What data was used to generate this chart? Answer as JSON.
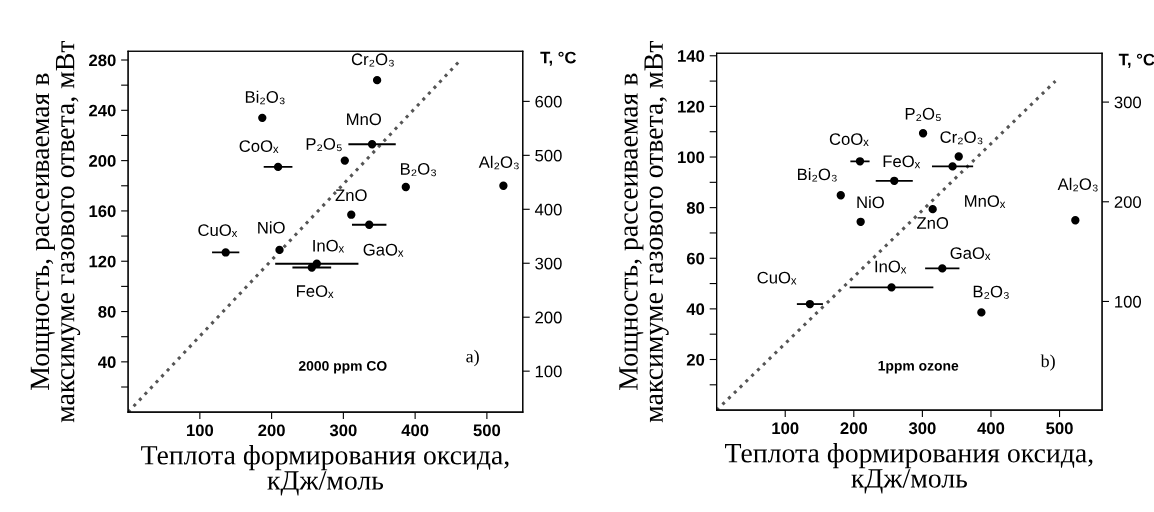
{
  "chart_data": [
    {
      "type": "scatter",
      "xlabel": "Теплота формирования оксида,\nкДж/моль",
      "ylabel": "Мощность, рассеиваемая в\nмаксимуме газового ответа, мВт",
      "y2label": "T, °C",
      "xlim": [
        0,
        550
      ],
      "xticks": [
        100,
        200,
        300,
        400,
        500
      ],
      "ylim": [
        0,
        287
      ],
      "yticks": [
        {
          "value": 20,
          "label": null
        },
        40,
        {
          "value": 60,
          "label": null
        },
        80,
        {
          "value": 100,
          "label": null
        },
        120,
        {
          "value": 140,
          "label": null
        },
        160,
        {
          "value": 180,
          "label": null
        },
        200,
        {
          "value": 220,
          "label": null
        },
        240,
        {
          "value": 260,
          "label": null
        },
        280
      ],
      "y2lim": [
        24,
        693
      ],
      "y2ticks": [
        100,
        200,
        300,
        400,
        500,
        600
      ],
      "series": [
        {
          "color": "#000000",
          "marker": "circle",
          "x": [
            347,
            187,
            209,
            302,
            340,
            311,
            336,
            387,
            523,
            136,
            211,
            263,
            256
          ],
          "values": [
            264,
            234,
            195,
            200,
            213,
            157,
            149,
            179,
            180,
            127,
            129,
            118,
            115
          ],
          "xerrors": [
            null,
            null,
            20,
            null,
            33,
            null,
            24,
            null,
            null,
            19,
            null,
            58,
            27
          ]
        },
        {
          "type": "line",
          "color": "#555555",
          "line_style": "dotted",
          "marker": "none",
          "x": [
            0,
            460
          ],
          "values": [
            0,
            278
          ]
        }
      ],
      "annotations": [
        {
          "text": "Cr₂O₃",
          "x": 347,
          "y": 264
        },
        {
          "text": "Bi₂O₃",
          "x": 187,
          "y": 234
        },
        {
          "text": "CoOₓ",
          "x": 209,
          "y": 195
        },
        {
          "text": "P₂O₅",
          "x": 302,
          "y": 200
        },
        {
          "text": "MnO",
          "x": 340,
          "y": 213
        },
        {
          "text": "ZnO",
          "x": 311,
          "y": 157
        },
        {
          "text": "GaOₓ",
          "x": 336,
          "y": 149
        },
        {
          "text": "B₂O₃",
          "x": 387,
          "y": 179
        },
        {
          "text": "Al₂O₃",
          "x": 523,
          "y": 180
        },
        {
          "text": "CuOₓ",
          "x": 136,
          "y": 127
        },
        {
          "text": "NiO",
          "x": 211,
          "y": 129
        },
        {
          "text": "InOₓ",
          "x": 263,
          "y": 118
        },
        {
          "text": "FeOₓ",
          "x": 256,
          "y": 115
        },
        "2000 ppm CO",
        "a)"
      ]
    },
    {
      "type": "scatter",
      "xlabel": "Теплота формирования оксида,\nкДж/моль",
      "ylabel": "Мощность, рассеиваемая в\nмаксимуме газового ответа, мВт",
      "y2label": "T, °C",
      "xlim": [
        0,
        562
      ],
      "xticks": [
        100,
        200,
        300,
        400,
        500
      ],
      "ylim": [
        0,
        141
      ],
      "yticks": [
        {
          "value": 10,
          "label": null
        },
        20,
        {
          "value": 30,
          "label": null
        },
        40,
        {
          "value": 50,
          "label": null
        },
        60,
        {
          "value": 70,
          "label": null
        },
        80,
        {
          "value": 90,
          "label": null
        },
        100,
        {
          "value": 110,
          "label": null
        },
        120,
        {
          "value": 130,
          "label": null
        },
        140
      ],
      "y2lim": [
        -9,
        349
      ],
      "y2ticks": [
        100,
        200,
        300
      ],
      "series": [
        {
          "color": "#000000",
          "marker": "circle",
          "x": [
            301,
            209,
            259,
            181,
            210,
            315,
            353,
            344,
            523,
            329,
            386,
            136,
            255
          ],
          "values": [
            109.4,
            98.3,
            90.6,
            84.9,
            74.4,
            79.4,
            100.2,
            96.3,
            75,
            56,
            38.6,
            41.9,
            48.5
          ],
          "xerrors": [
            null,
            14,
            27,
            null,
            null,
            null,
            null,
            30,
            null,
            25,
            null,
            19,
            61
          ]
        },
        {
          "type": "line",
          "color": "#555555",
          "line_style": "dotted",
          "marker": "none",
          "x": [
            0,
            494
          ],
          "values": [
            0,
            130
          ]
        }
      ],
      "annotations": [
        {
          "text": "P₂O₅",
          "x": 301,
          "y": 109.4
        },
        {
          "text": "CoOₓ",
          "x": 209,
          "y": 98.3
        },
        {
          "text": "FeOₓ",
          "x": 259,
          "y": 90.6
        },
        {
          "text": "Bi₂O₃",
          "x": 181,
          "y": 84.9
        },
        {
          "text": "NiO",
          "x": 210,
          "y": 74.4
        },
        {
          "text": "ZnO",
          "x": 315,
          "y": 79.4
        },
        {
          "text": "Cr₂O₃",
          "x": 353,
          "y": 100.2
        },
        {
          "text": "MnOₓ",
          "x": 344,
          "y": 96.3
        },
        {
          "text": "Al₂O₃",
          "x": 523,
          "y": 75
        },
        {
          "text": "GaOₓ",
          "x": 329,
          "y": 56
        },
        {
          "text": "B₂O₃",
          "x": 386,
          "y": 38.6
        },
        {
          "text": "CuOₓ",
          "x": 136,
          "y": 41.9
        },
        {
          "text": "InOₓ",
          "x": 255,
          "y": 48.5
        },
        "1ppm ozone",
        "b)"
      ]
    }
  ]
}
